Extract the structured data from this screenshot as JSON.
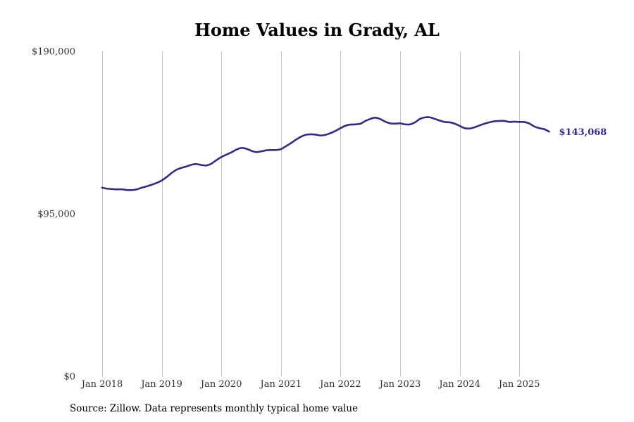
{
  "chart_data": {
    "type": "line",
    "title": "Home Values in Grady, AL",
    "xlabel": "",
    "ylabel": "",
    "ylim": [
      0,
      190000
    ],
    "y_ticks": [
      {
        "value": 0,
        "label": "$0"
      },
      {
        "value": 95000,
        "label": "$95,000"
      },
      {
        "value": 190000,
        "label": "$190,000"
      }
    ],
    "x_ticks": [
      {
        "value": 2018.0,
        "label": "Jan 2018"
      },
      {
        "value": 2019.0,
        "label": "Jan 2019"
      },
      {
        "value": 2020.0,
        "label": "Jan 2020"
      },
      {
        "value": 2021.0,
        "label": "Jan 2021"
      },
      {
        "value": 2022.0,
        "label": "Jan 2022"
      },
      {
        "value": 2023.0,
        "label": "Jan 2023"
      },
      {
        "value": 2024.0,
        "label": "Jan 2024"
      },
      {
        "value": 2025.0,
        "label": "Jan 2025"
      }
    ],
    "grid": "vertical",
    "line_color": "#332a86",
    "end_label": "$143,068",
    "series": [
      {
        "values": [
          [
            2018.0,
            110300
          ],
          [
            2018.083,
            109700
          ],
          [
            2018.167,
            109500
          ],
          [
            2018.25,
            109300
          ],
          [
            2018.333,
            109300
          ],
          [
            2018.417,
            108900
          ],
          [
            2018.5,
            108900
          ],
          [
            2018.583,
            109300
          ],
          [
            2018.667,
            110300
          ],
          [
            2018.75,
            111100
          ],
          [
            2018.833,
            112000
          ],
          [
            2018.917,
            113100
          ],
          [
            2019.0,
            114500
          ],
          [
            2019.083,
            116500
          ],
          [
            2019.167,
            118900
          ],
          [
            2019.25,
            120800
          ],
          [
            2019.333,
            121900
          ],
          [
            2019.417,
            122700
          ],
          [
            2019.5,
            123700
          ],
          [
            2019.583,
            124100
          ],
          [
            2019.667,
            123500
          ],
          [
            2019.75,
            123300
          ],
          [
            2019.833,
            124300
          ],
          [
            2019.917,
            126400
          ],
          [
            2020.0,
            128200
          ],
          [
            2020.083,
            129600
          ],
          [
            2020.167,
            130900
          ],
          [
            2020.25,
            132500
          ],
          [
            2020.333,
            133500
          ],
          [
            2020.417,
            133100
          ],
          [
            2020.5,
            131900
          ],
          [
            2020.583,
            131100
          ],
          [
            2020.667,
            131500
          ],
          [
            2020.75,
            132100
          ],
          [
            2020.833,
            132300
          ],
          [
            2020.917,
            132300
          ],
          [
            2021.0,
            132800
          ],
          [
            2021.083,
            134500
          ],
          [
            2021.167,
            136300
          ],
          [
            2021.25,
            138300
          ],
          [
            2021.333,
            140000
          ],
          [
            2021.417,
            141200
          ],
          [
            2021.5,
            141500
          ],
          [
            2021.583,
            141300
          ],
          [
            2021.667,
            140800
          ],
          [
            2021.75,
            141200
          ],
          [
            2021.833,
            142200
          ],
          [
            2021.917,
            143500
          ],
          [
            2022.0,
            145100
          ],
          [
            2022.083,
            146500
          ],
          [
            2022.167,
            147200
          ],
          [
            2022.25,
            147300
          ],
          [
            2022.333,
            147700
          ],
          [
            2022.417,
            149300
          ],
          [
            2022.5,
            150500
          ],
          [
            2022.583,
            151200
          ],
          [
            2022.667,
            150400
          ],
          [
            2022.75,
            148900
          ],
          [
            2022.833,
            147900
          ],
          [
            2022.917,
            147700
          ],
          [
            2023.0,
            147900
          ],
          [
            2023.083,
            147300
          ],
          [
            2023.167,
            147300
          ],
          [
            2023.25,
            148500
          ],
          [
            2023.333,
            150500
          ],
          [
            2023.417,
            151400
          ],
          [
            2023.5,
            151400
          ],
          [
            2023.583,
            150500
          ],
          [
            2023.667,
            149500
          ],
          [
            2023.75,
            148700
          ],
          [
            2023.833,
            148500
          ],
          [
            2023.917,
            147700
          ],
          [
            2024.0,
            146400
          ],
          [
            2024.083,
            145100
          ],
          [
            2024.167,
            144900
          ],
          [
            2024.25,
            145600
          ],
          [
            2024.333,
            146700
          ],
          [
            2024.417,
            147700
          ],
          [
            2024.5,
            148500
          ],
          [
            2024.583,
            149100
          ],
          [
            2024.667,
            149300
          ],
          [
            2024.75,
            149300
          ],
          [
            2024.833,
            148700
          ],
          [
            2024.917,
            148900
          ],
          [
            2025.0,
            148700
          ],
          [
            2025.083,
            148700
          ],
          [
            2025.167,
            147800
          ],
          [
            2025.25,
            146100
          ],
          [
            2025.333,
            145100
          ],
          [
            2025.417,
            144500
          ],
          [
            2025.5,
            143068
          ]
        ]
      }
    ]
  },
  "footer": {
    "source_text": "Source: Zillow. Data represents monthly typical home value"
  }
}
